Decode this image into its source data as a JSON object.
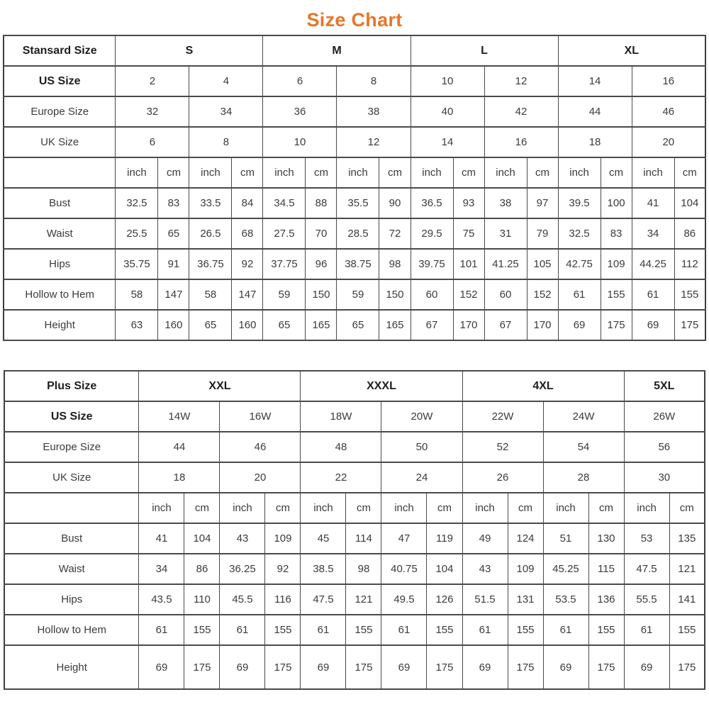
{
  "page": {
    "title": "Size Chart",
    "title_color": "#E8762A",
    "border_color": "#4a4a4a"
  },
  "tables": [
    {
      "id": "standard",
      "corner_label": "Stansard Size",
      "groups": [
        {
          "label": "S",
          "span": 2
        },
        {
          "label": "M",
          "span": 2
        },
        {
          "label": "L",
          "span": 2
        },
        {
          "label": "XL",
          "span": 2
        }
      ],
      "size_rows": [
        {
          "label": "US Size",
          "bold": true,
          "values": [
            "2",
            "4",
            "6",
            "8",
            "10",
            "12",
            "14",
            "16"
          ]
        },
        {
          "label": "Europe Size",
          "bold": false,
          "values": [
            "32",
            "34",
            "36",
            "38",
            "40",
            "42",
            "44",
            "46"
          ]
        },
        {
          "label": "UK Size",
          "bold": false,
          "values": [
            "6",
            "8",
            "10",
            "12",
            "14",
            "16",
            "18",
            "20"
          ]
        }
      ],
      "unit_labels": [
        "inch",
        "cm"
      ],
      "measure_rows": [
        {
          "label": "Bust",
          "values": [
            [
              "32.5",
              "83"
            ],
            [
              "33.5",
              "84"
            ],
            [
              "34.5",
              "88"
            ],
            [
              "35.5",
              "90"
            ],
            [
              "36.5",
              "93"
            ],
            [
              "38",
              "97"
            ],
            [
              "39.5",
              "100"
            ],
            [
              "41",
              "104"
            ]
          ]
        },
        {
          "label": "Waist",
          "values": [
            [
              "25.5",
              "65"
            ],
            [
              "26.5",
              "68"
            ],
            [
              "27.5",
              "70"
            ],
            [
              "28.5",
              "72"
            ],
            [
              "29.5",
              "75"
            ],
            [
              "31",
              "79"
            ],
            [
              "32.5",
              "83"
            ],
            [
              "34",
              "86"
            ]
          ]
        },
        {
          "label": "Hips",
          "values": [
            [
              "35.75",
              "91"
            ],
            [
              "36.75",
              "92"
            ],
            [
              "37.75",
              "96"
            ],
            [
              "38.75",
              "98"
            ],
            [
              "39.75",
              "101"
            ],
            [
              "41.25",
              "105"
            ],
            [
              "42.75",
              "109"
            ],
            [
              "44.25",
              "112"
            ]
          ]
        },
        {
          "label": "Hollow to Hem",
          "values": [
            [
              "58",
              "147"
            ],
            [
              "58",
              "147"
            ],
            [
              "59",
              "150"
            ],
            [
              "59",
              "150"
            ],
            [
              "60",
              "152"
            ],
            [
              "60",
              "152"
            ],
            [
              "61",
              "155"
            ],
            [
              "61",
              "155"
            ]
          ]
        },
        {
          "label": "Height",
          "values": [
            [
              "63",
              "160"
            ],
            [
              "65",
              "160"
            ],
            [
              "65",
              "165"
            ],
            [
              "65",
              "165"
            ],
            [
              "67",
              "170"
            ],
            [
              "67",
              "170"
            ],
            [
              "69",
              "175"
            ],
            [
              "69",
              "175"
            ]
          ]
        }
      ]
    },
    {
      "id": "plus",
      "corner_label": "Plus Size",
      "groups": [
        {
          "label": "XXL",
          "span": 2
        },
        {
          "label": "XXXL",
          "span": 2
        },
        {
          "label": "4XL",
          "span": 2
        },
        {
          "label": "5XL",
          "span": 1
        }
      ],
      "size_rows": [
        {
          "label": "US Size",
          "bold": true,
          "values": [
            "14W",
            "16W",
            "18W",
            "20W",
            "22W",
            "24W",
            "26W"
          ]
        },
        {
          "label": "Europe Size",
          "bold": false,
          "values": [
            "44",
            "46",
            "48",
            "50",
            "52",
            "54",
            "56"
          ]
        },
        {
          "label": "UK Size",
          "bold": false,
          "values": [
            "18",
            "20",
            "22",
            "24",
            "26",
            "28",
            "30"
          ]
        }
      ],
      "unit_labels": [
        "inch",
        "cm"
      ],
      "measure_rows": [
        {
          "label": "Bust",
          "values": [
            [
              "41",
              "104"
            ],
            [
              "43",
              "109"
            ],
            [
              "45",
              "114"
            ],
            [
              "47",
              "119"
            ],
            [
              "49",
              "124"
            ],
            [
              "51",
              "130"
            ],
            [
              "53",
              "135"
            ]
          ]
        },
        {
          "label": "Waist",
          "values": [
            [
              "34",
              "86"
            ],
            [
              "36.25",
              "92"
            ],
            [
              "38.5",
              "98"
            ],
            [
              "40.75",
              "104"
            ],
            [
              "43",
              "109"
            ],
            [
              "45.25",
              "115"
            ],
            [
              "47.5",
              "121"
            ]
          ]
        },
        {
          "label": "Hips",
          "values": [
            [
              "43.5",
              "110"
            ],
            [
              "45.5",
              "116"
            ],
            [
              "47.5",
              "121"
            ],
            [
              "49.5",
              "126"
            ],
            [
              "51.5",
              "131"
            ],
            [
              "53.5",
              "136"
            ],
            [
              "55.5",
              "141"
            ]
          ]
        },
        {
          "label": "Hollow to Hem",
          "values": [
            [
              "61",
              "155"
            ],
            [
              "61",
              "155"
            ],
            [
              "61",
              "155"
            ],
            [
              "61",
              "155"
            ],
            [
              "61",
              "155"
            ],
            [
              "61",
              "155"
            ],
            [
              "61",
              "155"
            ]
          ]
        },
        {
          "label": "Height",
          "values": [
            [
              "69",
              "175"
            ],
            [
              "69",
              "175"
            ],
            [
              "69",
              "175"
            ],
            [
              "69",
              "175"
            ],
            [
              "69",
              "175"
            ],
            [
              "69",
              "175"
            ],
            [
              "69",
              "175"
            ]
          ]
        }
      ]
    }
  ]
}
